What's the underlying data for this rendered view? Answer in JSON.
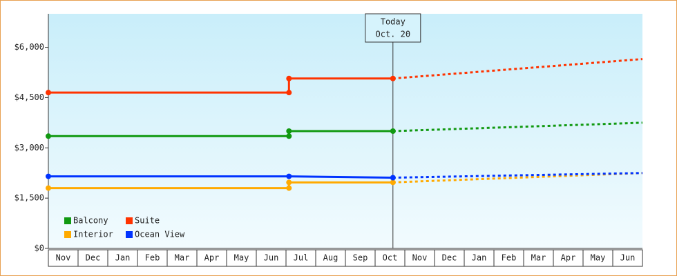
{
  "chart_data": {
    "type": "line",
    "xlim": [
      0,
      20
    ],
    "xticks": [
      {
        "value": 0.5,
        "label": "Nov"
      },
      {
        "value": 1.5,
        "label": "Dec"
      },
      {
        "value": 2.5,
        "label": "Jan"
      },
      {
        "value": 3.5,
        "label": "Feb"
      },
      {
        "value": 4.5,
        "label": "Mar"
      },
      {
        "value": 5.5,
        "label": "Apr"
      },
      {
        "value": 6.5,
        "label": "May"
      },
      {
        "value": 7.5,
        "label": "Jun"
      },
      {
        "value": 8.5,
        "label": "Jul"
      },
      {
        "value": 9.5,
        "label": "Aug"
      },
      {
        "value": 10.5,
        "label": "Sep"
      },
      {
        "value": 11.5,
        "label": "Oct"
      },
      {
        "value": 12.5,
        "label": "Nov"
      },
      {
        "value": 13.5,
        "label": "Dec"
      },
      {
        "value": 14.5,
        "label": "Jan"
      },
      {
        "value": 15.5,
        "label": "Feb"
      },
      {
        "value": 16.5,
        "label": "Mar"
      },
      {
        "value": 17.5,
        "label": "Apr"
      },
      {
        "value": 18.5,
        "label": "May"
      },
      {
        "value": 19.5,
        "label": "Jun"
      }
    ],
    "ylim": [
      0,
      7000
    ],
    "yticks": [
      {
        "value": 0,
        "label": "$0"
      },
      {
        "value": 1500,
        "label": "$1,500"
      },
      {
        "value": 3000,
        "label": "$3,000"
      },
      {
        "value": 4500,
        "label": "$4,500"
      },
      {
        "value": 6000,
        "label": "$6,000"
      }
    ],
    "today": {
      "x": 11.6,
      "label": [
        "Today",
        "Oct. 20"
      ]
    },
    "series": [
      {
        "name": "Balcony",
        "color": "#119911",
        "x": [
          0,
          8.1,
          8.1,
          11.6
        ],
        "values": [
          3350,
          3350,
          3500,
          3500
        ],
        "forecast_x": [
          11.6,
          20
        ],
        "forecast_values": [
          3500,
          3750
        ]
      },
      {
        "name": "Suite",
        "color": "#ff3300",
        "x": [
          0,
          8.1,
          8.1,
          11.6
        ],
        "values": [
          4650,
          4650,
          5070,
          5070
        ],
        "forecast_x": [
          11.6,
          20
        ],
        "forecast_values": [
          5070,
          5650
        ]
      },
      {
        "name": "Interior",
        "color": "#ffaa00",
        "x": [
          0,
          8.1,
          8.1,
          11.6
        ],
        "values": [
          1800,
          1800,
          1970,
          1970
        ],
        "forecast_x": [
          11.6,
          20
        ],
        "forecast_values": [
          1970,
          2250
        ]
      },
      {
        "name": "Ocean View",
        "color": "#0033ff",
        "x": [
          0,
          8.1,
          11.6
        ],
        "values": [
          2150,
          2150,
          2110
        ],
        "forecast_x": [
          11.6,
          20
        ],
        "forecast_values": [
          2110,
          2250
        ]
      }
    ]
  }
}
